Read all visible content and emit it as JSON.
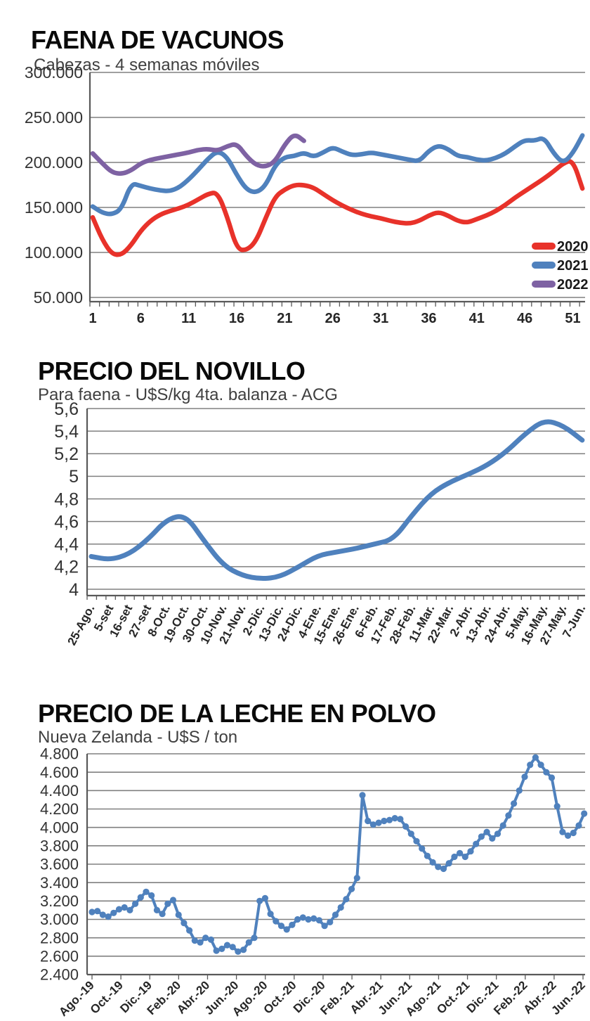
{
  "colors": {
    "background": "#ffffff",
    "grid": "#808080",
    "axis": "#595959",
    "tick_text": "#333333",
    "xlabel_text": "#262626",
    "legend_text": "#1a1a1a",
    "red_2020": "#e8322a",
    "blue_2021": "#4f81bd",
    "purple_2022": "#7e62a3"
  },
  "chart_data": [
    {
      "type": "line",
      "title": "FAENA DE VACUNOS",
      "subtitle": "Cabezas - 4 semanas móviles",
      "ylabel": "Cabezas",
      "ylim": [
        50000,
        300000
      ],
      "ytick_step": 50000,
      "ytick_labels": [
        "50.000",
        "100.000",
        "150.000",
        "200.000",
        "250.000",
        "300.000"
      ],
      "xticks": [
        "1",
        "6",
        "11",
        "16",
        "21",
        "26",
        "31",
        "36",
        "41",
        "46",
        "51"
      ],
      "grid": true,
      "legend": {
        "position": "right-inside",
        "entries": [
          "2020",
          "2021",
          "2022"
        ]
      },
      "series": [
        {
          "name": "2020",
          "color": "#e8322a",
          "values": [
            139000,
            114000,
            98000,
            97000,
            108000,
            124000,
            135000,
            142000,
            146000,
            149000,
            153000,
            159000,
            165000,
            167000,
            140000,
            104000,
            102000,
            112000,
            138000,
            162000,
            170000,
            175000,
            175000,
            172000,
            165000,
            158000,
            152000,
            147000,
            143000,
            140000,
            138000,
            135000,
            133000,
            132000,
            135000,
            141000,
            145000,
            141000,
            135000,
            133000,
            137000,
            141000,
            146000,
            153000,
            161000,
            168000,
            175000,
            182000,
            190000,
            199000,
            203000,
            171000
          ]
        },
        {
          "name": "2021",
          "color": "#4f81bd",
          "values": [
            151000,
            144000,
            142000,
            148000,
            177000,
            174000,
            171000,
            169000,
            168000,
            172000,
            181000,
            192000,
            204000,
            213000,
            206000,
            186000,
            170000,
            166000,
            174000,
            197000,
            206000,
            207000,
            211000,
            206000,
            211000,
            217000,
            212000,
            208000,
            209000,
            211000,
            209000,
            207000,
            205000,
            203000,
            201000,
            213000,
            219000,
            215000,
            207000,
            206000,
            203000,
            202000,
            205000,
            210000,
            218000,
            225000,
            224000,
            228000,
            210000,
            199000,
            210000,
            230000
          ]
        },
        {
          "name": "2022",
          "color": "#7e62a3",
          "values": [
            210000,
            199000,
            189000,
            187000,
            191000,
            199000,
            203000,
            205000,
            207000,
            209000,
            211000,
            214000,
            215000,
            213000,
            218000,
            221000,
            207000,
            197000,
            195000,
            201000,
            220000,
            232000,
            224000
          ]
        }
      ]
    },
    {
      "type": "line",
      "title": "PRECIO DEL NOVILLO",
      "subtitle": "Para faena - U$S/kg 4ta. balanza - ACG",
      "ylabel": "U$S/kg",
      "ylim": [
        4,
        5.6
      ],
      "ytick_step": 0.2,
      "ytick_labels": [
        "4",
        "4,2",
        "4,4",
        "4,6",
        "4,8",
        "5",
        "5,2",
        "5,4",
        "5,6"
      ],
      "x_labels": [
        "25-Ago.",
        "5-set",
        "16-set",
        "27-set",
        "8-Oct.",
        "19-Oct.",
        "30-Oct.",
        "10-Nov.",
        "21-Nov.",
        "2-Dic.",
        "13-Dic.",
        "24-Dic.",
        "4-Ene.",
        "15-Ene.",
        "26-Ene.",
        "6-Feb.",
        "17-Feb.",
        "28-Feb.",
        "11-Mar.",
        "22-Mar.",
        "2-Abr.",
        "13-Abr.",
        "24-Abr.",
        "5-May.",
        "16-May.",
        "27-May.",
        "7-Jun."
      ],
      "grid": true,
      "series": [
        {
          "name": "Precio del novillo",
          "color": "#4f81bd",
          "values": [
            4.29,
            4.26,
            4.31,
            4.44,
            4.62,
            4.66,
            4.42,
            4.21,
            4.12,
            4.09,
            4.11,
            4.2,
            4.3,
            4.33,
            4.36,
            4.4,
            4.44,
            4.66,
            4.85,
            4.95,
            5.02,
            5.1,
            5.22,
            5.38,
            5.5,
            5.45,
            5.32
          ]
        }
      ]
    },
    {
      "type": "line",
      "markers": true,
      "title": "PRECIO DE LA LECHE EN POLVO",
      "subtitle": "Nueva Zelanda - U$S / ton",
      "ylabel": "U$S / ton",
      "ylim": [
        2400,
        4800
      ],
      "ytick_step": 200,
      "ytick_labels": [
        "2.400",
        "2.600",
        "2.800",
        "3.000",
        "3.200",
        "3.400",
        "3.600",
        "3.800",
        "4.000",
        "4.200",
        "4.400",
        "4.600",
        "4.800"
      ],
      "x_labels": [
        "Ago.-19",
        "Oct.-19",
        "Dic.-19",
        "Feb.-20",
        "Abr.-20",
        "Jun.-20",
        "Ago.-20",
        "Oct.-20",
        "Dic.-20",
        "Feb.-21",
        "Abr.-21",
        "Jun.-21",
        "Ago.-21",
        "Oct.-21",
        "Dic.-21",
        "Feb.-22",
        "Abr.-22",
        "Jun.-22"
      ],
      "grid": true,
      "series": [
        {
          "name": "Leche en polvo",
          "color": "#4f81bd",
          "values": [
            3080,
            3090,
            3050,
            3030,
            3070,
            3110,
            3130,
            3100,
            3170,
            3240,
            3300,
            3260,
            3100,
            3060,
            3170,
            3210,
            3050,
            2960,
            2880,
            2770,
            2750,
            2800,
            2780,
            2660,
            2680,
            2720,
            2700,
            2650,
            2670,
            2750,
            2800,
            3200,
            3230,
            3060,
            2980,
            2930,
            2890,
            2940,
            3000,
            3020,
            3000,
            3010,
            2990,
            2930,
            2970,
            3050,
            3130,
            3220,
            3330,
            3450,
            4350,
            4070,
            4030,
            4050,
            4070,
            4080,
            4100,
            4090,
            4010,
            3930,
            3850,
            3770,
            3690,
            3620,
            3570,
            3550,
            3610,
            3680,
            3720,
            3680,
            3740,
            3820,
            3900,
            3950,
            3880,
            3930,
            4020,
            4130,
            4260,
            4400,
            4550,
            4680,
            4760,
            4680,
            4600,
            4540,
            4230,
            3950,
            3910,
            3940,
            4020,
            4150
          ]
        }
      ]
    }
  ]
}
